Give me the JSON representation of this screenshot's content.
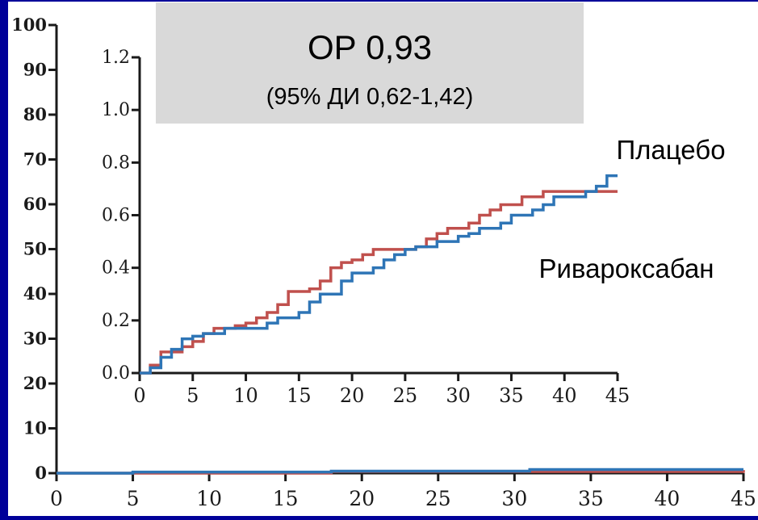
{
  "colors": {
    "frame": "#000099",
    "panel": "#ffffff",
    "axis": "#1a1a1a",
    "annotation_box": "#d9d9d9",
    "placebo": "#c0504d",
    "rivaroxaban": "#2e75b6"
  },
  "chart_data": [
    {
      "type": "line",
      "step": true,
      "x_ticks": [
        "0",
        "5",
        "10",
        "15",
        "20",
        "25",
        "30",
        "35",
        "40",
        "45"
      ],
      "y_ticks": [
        "0",
        "10",
        "20",
        "30",
        "40",
        "50",
        "60",
        "70",
        "80",
        "90",
        "100"
      ],
      "xlim": [
        0,
        45
      ],
      "ylim": [
        0,
        100
      ],
      "series": [
        {
          "key": "placebo",
          "x": [
            0,
            18,
            45
          ],
          "y": [
            0,
            0.35,
            0.7
          ]
        },
        {
          "key": "rivaroxaban",
          "x": [
            0,
            5,
            18,
            31,
            45
          ],
          "y": [
            0,
            0.25,
            0.45,
            0.8,
            0.8
          ]
        }
      ]
    },
    {
      "type": "line",
      "step": true,
      "x_ticks": [
        "0",
        "5",
        "10",
        "15",
        "20",
        "25",
        "30",
        "35",
        "40",
        "45"
      ],
      "y_ticks": [
        "0.0",
        "0.2",
        "0.4",
        "0.6",
        "0.8",
        "1.0",
        "1.2"
      ],
      "xlim": [
        0,
        45
      ],
      "ylim": [
        0,
        1.2
      ],
      "annotation": {
        "hr": "ОР 0,93",
        "ci": "(95% ДИ 0,62-1,42)"
      },
      "series": [
        {
          "key": "placebo",
          "name": "Плацебо",
          "x": [
            0,
            1,
            2,
            4,
            5,
            6,
            7,
            9,
            10,
            11,
            12,
            13,
            14,
            16,
            17,
            18,
            19,
            20,
            21,
            22,
            24,
            26,
            27,
            28,
            29,
            31,
            32,
            33,
            34,
            35,
            36,
            38,
            45
          ],
          "y": [
            0,
            0.03,
            0.08,
            0.1,
            0.12,
            0.15,
            0.17,
            0.18,
            0.19,
            0.21,
            0.23,
            0.26,
            0.31,
            0.32,
            0.35,
            0.4,
            0.42,
            0.43,
            0.45,
            0.47,
            0.47,
            0.48,
            0.51,
            0.53,
            0.55,
            0.57,
            0.6,
            0.62,
            0.64,
            0.64,
            0.67,
            0.69,
            0.69
          ]
        },
        {
          "key": "rivaroxaban",
          "name": "Ривароксабан",
          "x": [
            0,
            1,
            2,
            3,
            4,
            5,
            6,
            8,
            10,
            12,
            13,
            15,
            16,
            17,
            19,
            20,
            22,
            23,
            24,
            25,
            26,
            28,
            30,
            31,
            32,
            34,
            35,
            37,
            38,
            39,
            42,
            43,
            44,
            45
          ],
          "y": [
            0,
            0.02,
            0.06,
            0.09,
            0.13,
            0.14,
            0.15,
            0.17,
            0.17,
            0.19,
            0.21,
            0.23,
            0.27,
            0.3,
            0.35,
            0.38,
            0.4,
            0.43,
            0.45,
            0.47,
            0.48,
            0.5,
            0.52,
            0.53,
            0.55,
            0.57,
            0.6,
            0.62,
            0.64,
            0.67,
            0.69,
            0.71,
            0.75,
            0.75
          ]
        }
      ]
    }
  ]
}
